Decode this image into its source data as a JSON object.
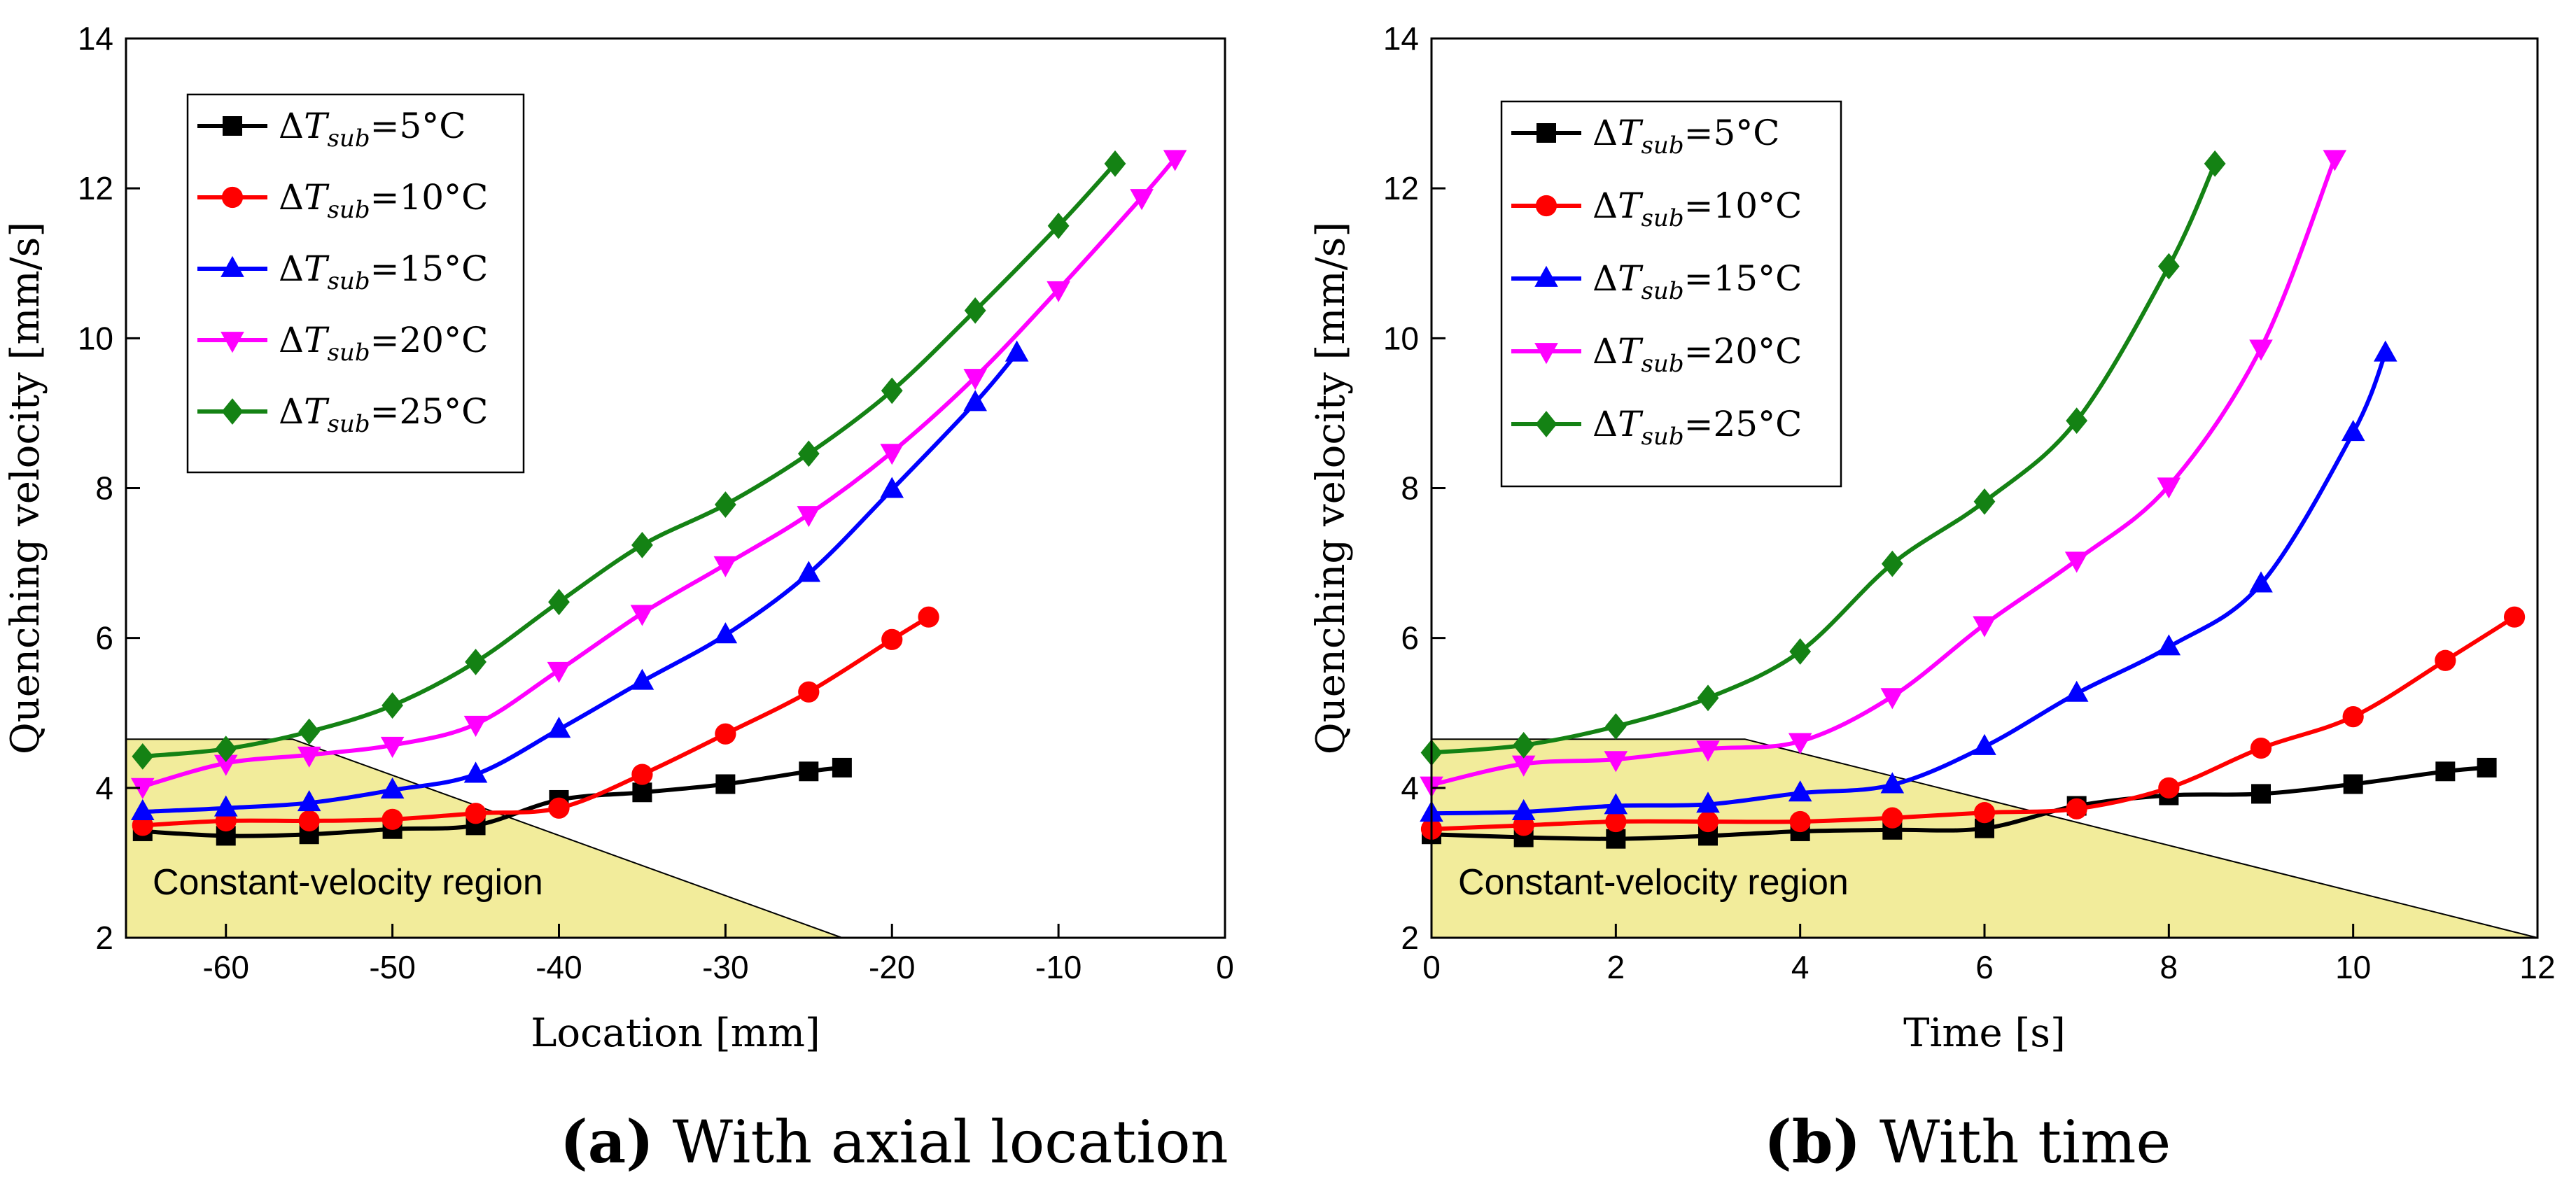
{
  "colors": {
    "black": "#000000",
    "red": "#ff0000",
    "blue": "#0000ff",
    "magenta": "#ff00ff",
    "green": "#148214",
    "region": "#f2ec9b"
  },
  "region_label": "Constant-velocity region",
  "legend_prefix": "ΔT",
  "legend_subscript": "sub",
  "chart_data": [
    {
      "type": "line",
      "caption_id": "(a)",
      "caption_text": " With axial location",
      "xlabel": "Location [mm]",
      "ylabel": "Quenching velocity [mm/s]",
      "xlim": [
        -66,
        0
      ],
      "ylim": [
        2,
        14
      ],
      "xticks": [
        -60,
        -50,
        -40,
        -30,
        -20,
        -10,
        0
      ],
      "yticks": [
        2,
        4,
        6,
        8,
        10,
        12,
        14
      ],
      "legend_position": "top-left",
      "region": {
        "label": "Constant-velocity region",
        "polygon": [
          [
            -66,
            2
          ],
          [
            -66,
            4.65
          ],
          [
            -56,
            4.65
          ],
          [
            -23,
            2
          ]
        ]
      },
      "series": [
        {
          "name": "=5°C",
          "color": "#000000",
          "marker": "square",
          "x": [
            -65,
            -60,
            -55,
            -50,
            -45,
            -40,
            -35,
            -30,
            -25,
            -23
          ],
          "y": [
            3.42,
            3.36,
            3.38,
            3.45,
            3.5,
            3.84,
            3.94,
            4.05,
            4.22,
            4.27
          ]
        },
        {
          "name": "=10°C",
          "color": "#ff0000",
          "marker": "circle",
          "x": [
            -65,
            -60,
            -55,
            -50,
            -45,
            -40,
            -35,
            -30,
            -25,
            -20,
            -17.8
          ],
          "y": [
            3.5,
            3.56,
            3.56,
            3.58,
            3.66,
            3.73,
            4.18,
            4.72,
            5.28,
            5.98,
            6.28
          ]
        },
        {
          "name": "=15°C",
          "color": "#0000ff",
          "marker": "triangle-up",
          "x": [
            -65,
            -60,
            -55,
            -50,
            -45,
            -40,
            -35,
            -30,
            -25,
            -20,
            -15,
            -12.5
          ],
          "y": [
            3.68,
            3.73,
            3.8,
            3.97,
            4.18,
            4.78,
            5.42,
            6.04,
            6.86,
            7.98,
            9.14,
            9.8
          ]
        },
        {
          "name": "=20°C",
          "color": "#ff00ff",
          "marker": "triangle-down",
          "x": [
            -65,
            -60,
            -55,
            -50,
            -45,
            -40,
            -35,
            -30,
            -25,
            -20,
            -15,
            -10,
            -5,
            -3
          ],
          "y": [
            4.02,
            4.33,
            4.44,
            4.57,
            4.85,
            5.57,
            6.33,
            6.98,
            7.65,
            8.48,
            9.48,
            10.65,
            11.88,
            12.4
          ]
        },
        {
          "name": "=25°C",
          "color": "#148214",
          "marker": "diamond",
          "x": [
            -65,
            -60,
            -55,
            -50,
            -45,
            -40,
            -35,
            -30,
            -25,
            -20,
            -15,
            -10,
            -6.6
          ],
          "y": [
            4.42,
            4.52,
            4.75,
            5.1,
            5.68,
            6.48,
            7.24,
            7.78,
            8.46,
            9.3,
            10.37,
            11.5,
            12.33
          ]
        }
      ]
    },
    {
      "type": "line",
      "caption_id": "(b)",
      "caption_text": " With time",
      "xlabel": "Time [s]",
      "ylabel": "Quenching velocity [mm/s]",
      "xlim": [
        0,
        12
      ],
      "ylim": [
        2,
        14
      ],
      "xticks": [
        0,
        2,
        4,
        6,
        8,
        10,
        12
      ],
      "yticks": [
        2,
        4,
        6,
        8,
        10,
        12,
        14
      ],
      "legend_position": "top-left",
      "region": {
        "label": "Constant-velocity region",
        "polygon": [
          [
            0,
            2
          ],
          [
            0,
            4.65
          ],
          [
            3.4,
            4.65
          ],
          [
            12,
            2
          ]
        ]
      },
      "series": [
        {
          "name": "=5°C",
          "color": "#000000",
          "marker": "square",
          "x": [
            0,
            1,
            2,
            3,
            4,
            5,
            6,
            7,
            8,
            9,
            10,
            11,
            11.45
          ],
          "y": [
            3.38,
            3.34,
            3.32,
            3.36,
            3.42,
            3.44,
            3.46,
            3.76,
            3.9,
            3.92,
            4.05,
            4.22,
            4.27
          ]
        },
        {
          "name": "=10°C",
          "color": "#ff0000",
          "marker": "circle",
          "x": [
            0,
            1,
            2,
            3,
            4,
            5,
            6,
            7,
            8,
            9,
            10,
            11,
            11.75
          ],
          "y": [
            3.45,
            3.5,
            3.55,
            3.55,
            3.55,
            3.6,
            3.67,
            3.72,
            4.0,
            4.53,
            4.95,
            5.7,
            6.28
          ]
        },
        {
          "name": "=15°C",
          "color": "#0000ff",
          "marker": "triangle-up",
          "x": [
            0,
            1,
            2,
            3,
            4,
            5,
            6,
            7,
            8,
            9,
            10,
            10.35
          ],
          "y": [
            3.66,
            3.68,
            3.76,
            3.78,
            3.93,
            4.04,
            4.55,
            5.26,
            5.88,
            6.72,
            8.74,
            9.8
          ]
        },
        {
          "name": "=20°C",
          "color": "#ff00ff",
          "marker": "triangle-down",
          "x": [
            0,
            1,
            2,
            3,
            4,
            5,
            6,
            7,
            8,
            9,
            9.8
          ],
          "y": [
            4.04,
            4.32,
            4.38,
            4.52,
            4.62,
            5.22,
            6.18,
            7.04,
            8.03,
            9.87,
            12.4
          ]
        },
        {
          "name": "=25°C",
          "color": "#148214",
          "marker": "diamond",
          "x": [
            0,
            1,
            2,
            3,
            4,
            5,
            6,
            7,
            8,
            8.5
          ],
          "y": [
            4.47,
            4.57,
            4.82,
            5.2,
            5.82,
            6.99,
            7.82,
            8.9,
            10.96,
            12.33
          ]
        }
      ]
    }
  ]
}
